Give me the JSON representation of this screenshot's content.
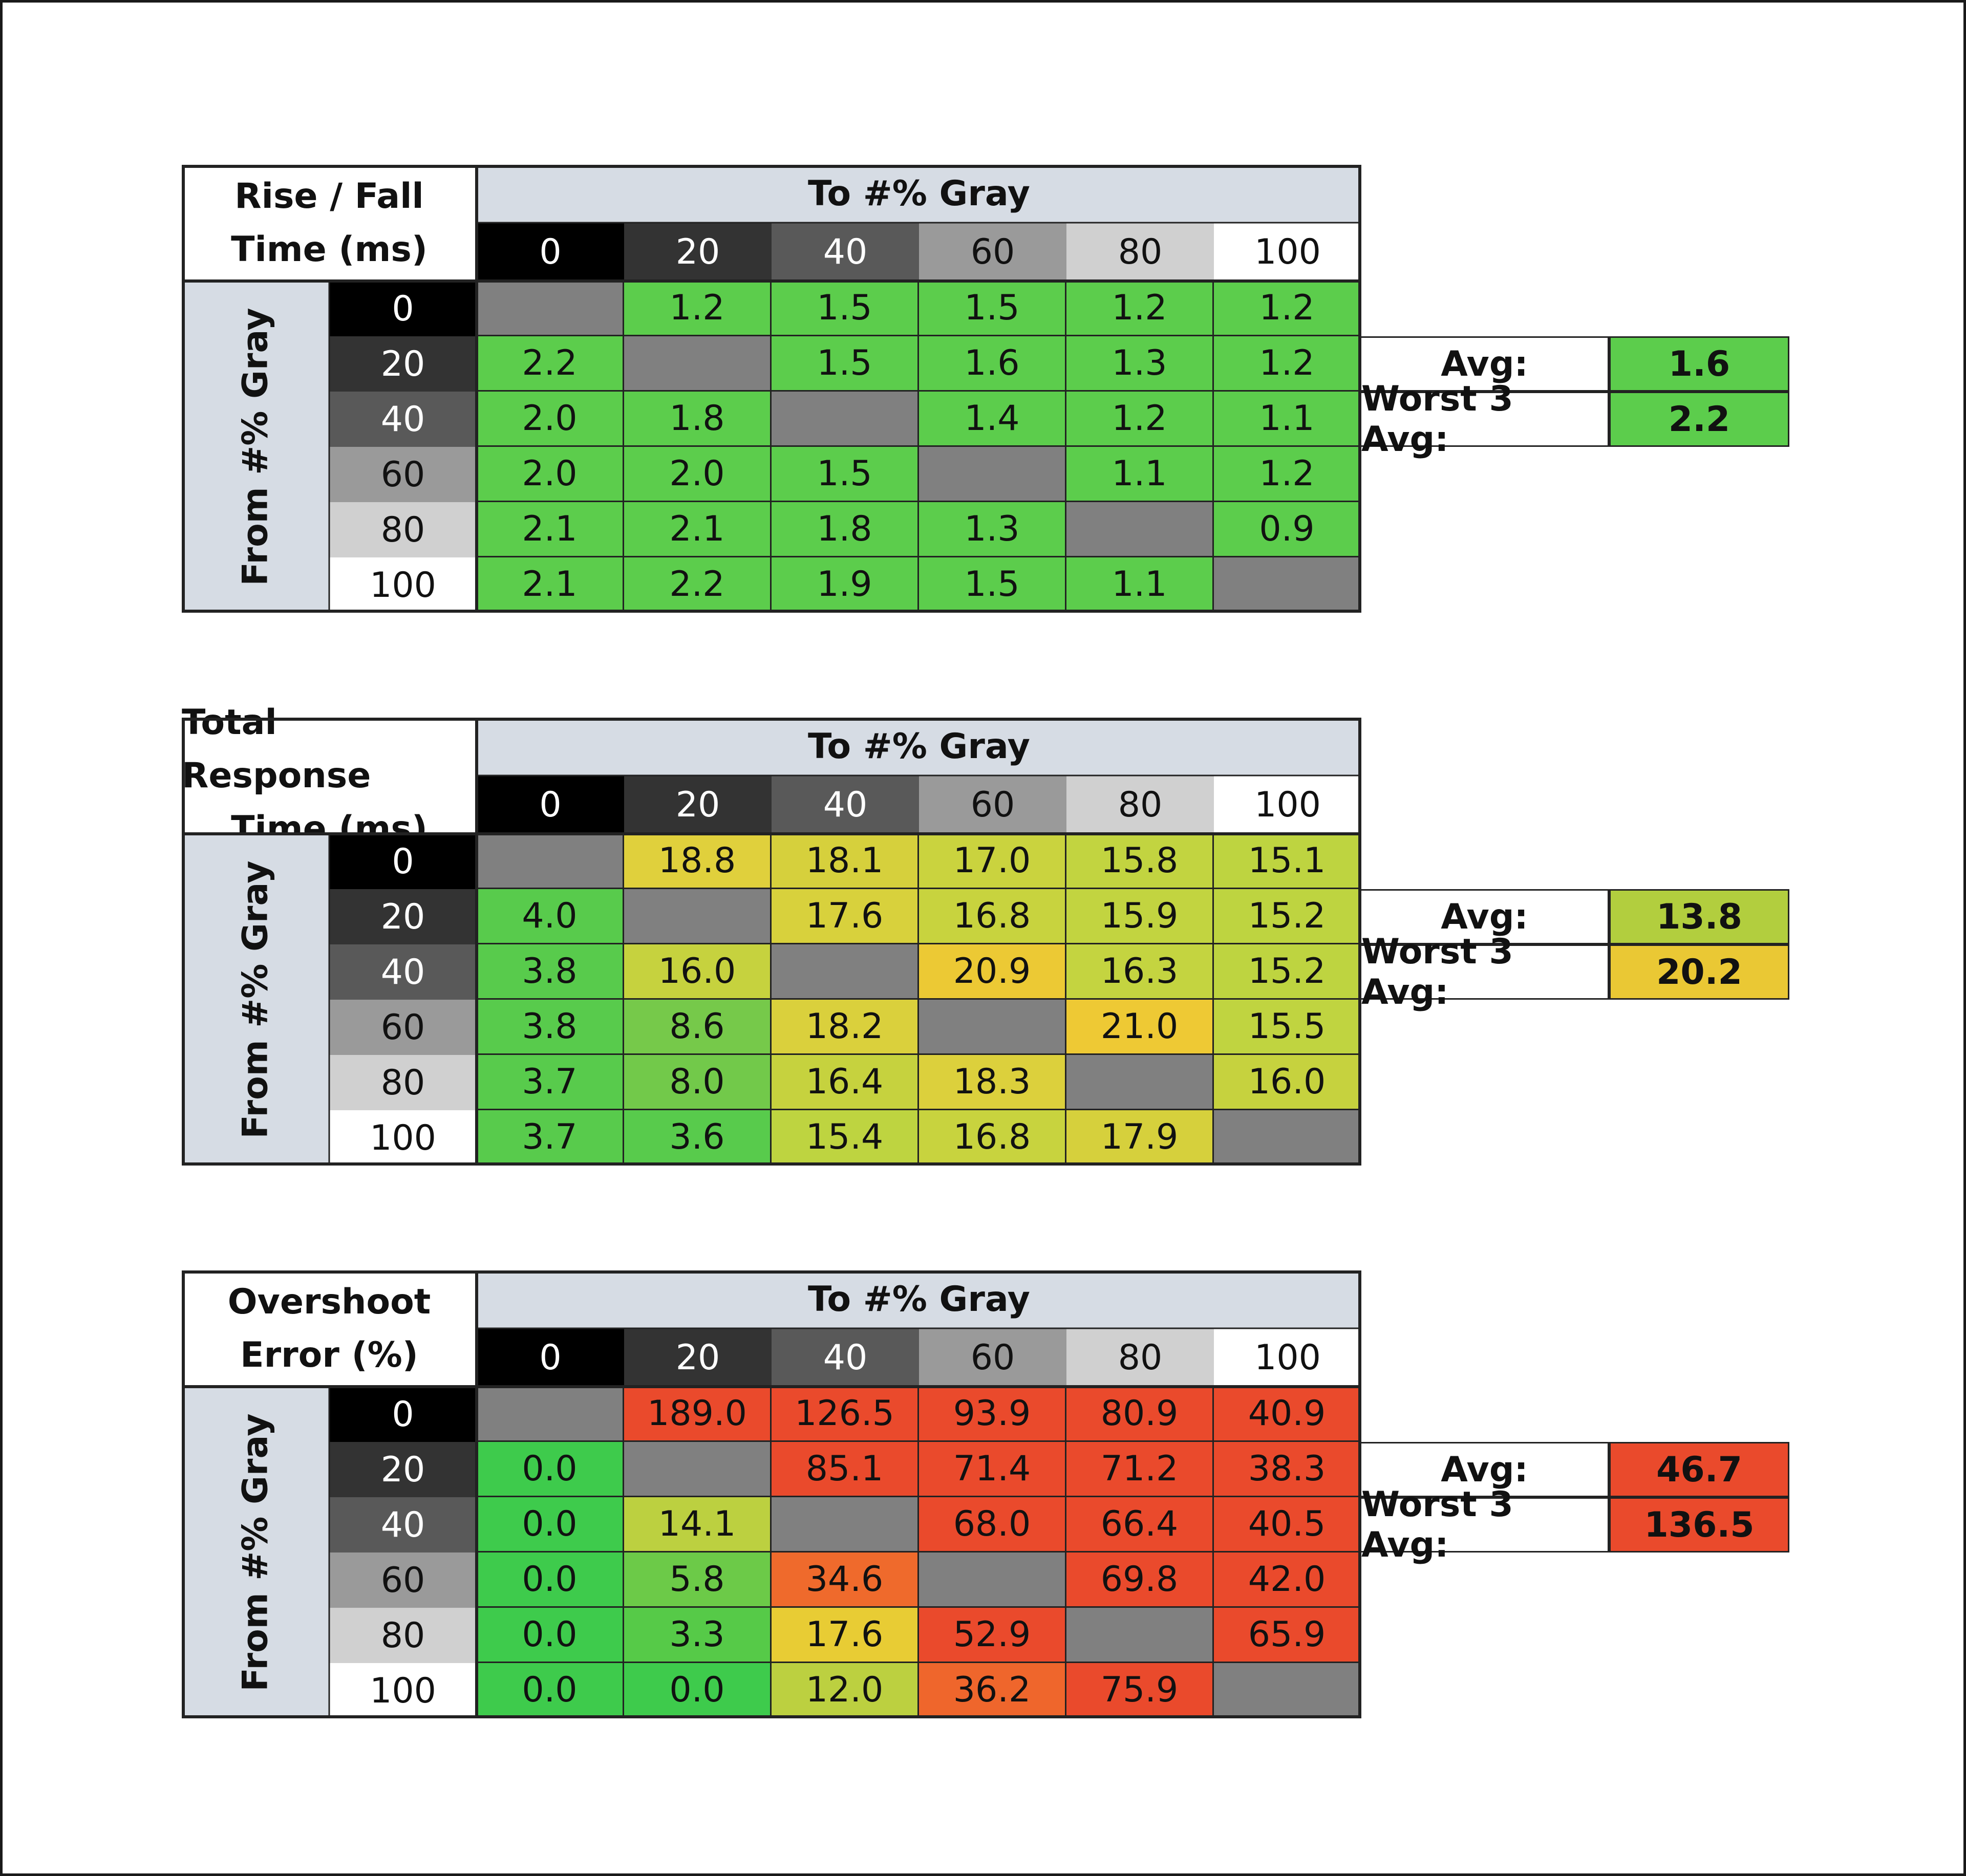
{
  "chart_data": [
    {
      "type": "table",
      "title_lines": [
        "Rise / Fall",
        "Time (ms)"
      ],
      "column_header": "To #% Gray",
      "row_header": "From #% Gray",
      "columns": [
        "0",
        "20",
        "40",
        "60",
        "80",
        "100"
      ],
      "rows": [
        "0",
        "20",
        "40",
        "60",
        "80",
        "100"
      ],
      "values": [
        [
          "",
          "1.2",
          "1.5",
          "1.5",
          "1.2",
          "1.2"
        ],
        [
          "2.2",
          "",
          "1.5",
          "1.6",
          "1.3",
          "1.2"
        ],
        [
          "2.0",
          "1.8",
          "",
          "1.4",
          "1.2",
          "1.1"
        ],
        [
          "2.0",
          "2.0",
          "1.5",
          "",
          "1.1",
          "1.2"
        ],
        [
          "2.1",
          "2.1",
          "1.8",
          "1.3",
          "",
          "0.9"
        ],
        [
          "2.1",
          "2.2",
          "1.9",
          "1.5",
          "1.1",
          ""
        ]
      ],
      "colors": [
        [
          "#808080",
          "#5ccd4c",
          "#5ccd4c",
          "#5ccd4c",
          "#5ccd4c",
          "#5ccd4c"
        ],
        [
          "#5ccd4c",
          "#808080",
          "#5ccd4c",
          "#5ccd4c",
          "#5ccd4c",
          "#5ccd4c"
        ],
        [
          "#5ccd4c",
          "#5ccd4c",
          "#808080",
          "#5ccd4c",
          "#5ccd4c",
          "#5ccd4c"
        ],
        [
          "#5ccd4c",
          "#5ccd4c",
          "#5ccd4c",
          "#808080",
          "#5ccd4c",
          "#5ccd4c"
        ],
        [
          "#5ccd4c",
          "#5ccd4c",
          "#5ccd4c",
          "#5ccd4c",
          "#808080",
          "#5ccd4c"
        ],
        [
          "#5ccd4c",
          "#5ccd4c",
          "#5ccd4c",
          "#5ccd4c",
          "#5ccd4c",
          "#808080"
        ]
      ],
      "stats": [
        {
          "label": "Avg:",
          "value": "1.6",
          "color": "#5ccd4c"
        },
        {
          "label": "Worst 3 Avg:",
          "value": "2.2",
          "color": "#5ccd4c"
        }
      ]
    },
    {
      "type": "table",
      "title_lines": [
        "Total Response",
        "Time (ms)"
      ],
      "column_header": "To #% Gray",
      "row_header": "From #% Gray",
      "columns": [
        "0",
        "20",
        "40",
        "60",
        "80",
        "100"
      ],
      "rows": [
        "0",
        "20",
        "40",
        "60",
        "80",
        "100"
      ],
      "values": [
        [
          "",
          "18.8",
          "18.1",
          "17.0",
          "15.8",
          "15.1"
        ],
        [
          "4.0",
          "",
          "17.6",
          "16.8",
          "15.9",
          "15.2"
        ],
        [
          "3.8",
          "16.0",
          "",
          "20.9",
          "16.3",
          "15.2"
        ],
        [
          "3.8",
          "8.6",
          "18.2",
          "",
          "21.0",
          "15.5"
        ],
        [
          "3.7",
          "8.0",
          "16.4",
          "18.3",
          "",
          "16.0"
        ],
        [
          "3.7",
          "3.6",
          "15.4",
          "16.8",
          "17.9",
          ""
        ]
      ],
      "colors": [
        [
          "#808080",
          "#e0d03c",
          "#d6d03c",
          "#cad33e",
          "#c2d440",
          "#bed440"
        ],
        [
          "#58cb4c",
          "#808080",
          "#d8d13c",
          "#c8d33e",
          "#c2d440",
          "#bed440"
        ],
        [
          "#58cb4c",
          "#c6d23e",
          "#808080",
          "#ecc934",
          "#c4d440",
          "#bed440"
        ],
        [
          "#58cb4c",
          "#76c94a",
          "#dad03c",
          "#808080",
          "#eec934",
          "#c0d440"
        ],
        [
          "#58cb4c",
          "#72c94a",
          "#c6d23e",
          "#dcd03c",
          "#808080",
          "#c6d23e"
        ],
        [
          "#58cb4c",
          "#58cb4c",
          "#bed440",
          "#c8d33e",
          "#d6d03c",
          "#808080"
        ]
      ],
      "stats": [
        {
          "label": "Avg:",
          "value": "13.8",
          "color": "#b2ce3e"
        },
        {
          "label": "Worst 3 Avg:",
          "value": "20.2",
          "color": "#eac834"
        }
      ]
    },
    {
      "type": "table",
      "title_lines": [
        "Overshoot",
        "Error (%)"
      ],
      "column_header": "To #% Gray",
      "row_header": "From #% Gray",
      "columns": [
        "0",
        "20",
        "40",
        "60",
        "80",
        "100"
      ],
      "rows": [
        "0",
        "20",
        "40",
        "60",
        "80",
        "100"
      ],
      "values": [
        [
          "",
          "189.0",
          "126.5",
          "93.9",
          "80.9",
          "40.9"
        ],
        [
          "0.0",
          "",
          "85.1",
          "71.4",
          "71.2",
          "38.3"
        ],
        [
          "0.0",
          "14.1",
          "",
          "68.0",
          "66.4",
          "40.5"
        ],
        [
          "0.0",
          "5.8",
          "34.6",
          "",
          "69.8",
          "42.0"
        ],
        [
          "0.0",
          "3.3",
          "17.6",
          "52.9",
          "",
          "65.9"
        ],
        [
          "0.0",
          "0.0",
          "12.0",
          "36.2",
          "75.9",
          ""
        ]
      ],
      "colors": [
        [
          "#808080",
          "#ea4a2c",
          "#ea4a2c",
          "#ea4a2c",
          "#ea4a2c",
          "#ea4a2c"
        ],
        [
          "#3ecb4c",
          "#808080",
          "#ea4a2c",
          "#ea4a2c",
          "#ea4a2c",
          "#ea4a2c"
        ],
        [
          "#3ecb4c",
          "#bcd040",
          "#808080",
          "#ea4a2c",
          "#ea4a2c",
          "#ea4a2c"
        ],
        [
          "#3ecb4c",
          "#6cca48",
          "#ef6a2c",
          "#808080",
          "#ea4a2c",
          "#ea4a2c"
        ],
        [
          "#3ecb4c",
          "#56ca48",
          "#e8cc34",
          "#ea4a2c",
          "#808080",
          "#ea4a2c"
        ],
        [
          "#3ecb4c",
          "#3ecb4c",
          "#bcd040",
          "#ef662c",
          "#ea4a2c",
          "#808080"
        ]
      ],
      "stats": [
        {
          "label": "Avg:",
          "value": "46.7",
          "color": "#ea4a2c"
        },
        {
          "label": "Worst 3 Avg:",
          "value": "136.5",
          "color": "#ea4a2c"
        }
      ]
    }
  ],
  "gray_shades": [
    {
      "bg": "#000000",
      "fg": "#ffffff"
    },
    {
      "bg": "#333333",
      "fg": "#ffffff"
    },
    {
      "bg": "#595959",
      "fg": "#ffffff"
    },
    {
      "bg": "#9a9a9a",
      "fg": "#111111"
    },
    {
      "bg": "#d0d0d0",
      "fg": "#111111"
    },
    {
      "bg": "#ffffff",
      "fg": "#111111"
    }
  ]
}
